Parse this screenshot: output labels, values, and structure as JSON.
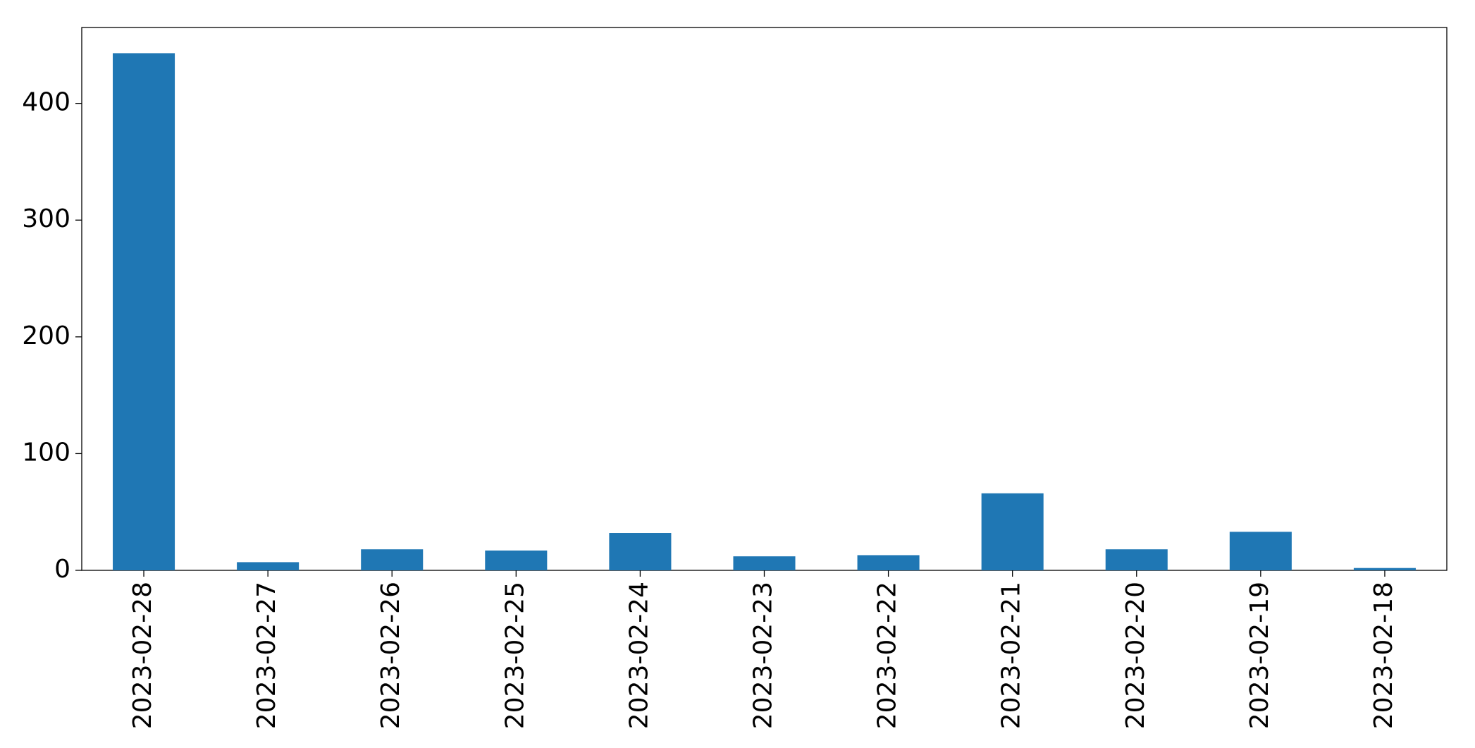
{
  "chart_data": {
    "type": "bar",
    "categories": [
      "2023-02-28",
      "2023-02-27",
      "2023-02-26",
      "2023-02-25",
      "2023-02-24",
      "2023-02-23",
      "2023-02-22",
      "2023-02-21",
      "2023-02-20",
      "2023-02-19",
      "2023-02-18"
    ],
    "values": [
      443,
      7,
      18,
      17,
      32,
      12,
      13,
      66,
      18,
      33,
      2
    ],
    "color": "#1f77b4",
    "ylim": [
      0,
      465
    ],
    "yticks": [
      0,
      100,
      200,
      300,
      400
    ],
    "grid": false
  }
}
